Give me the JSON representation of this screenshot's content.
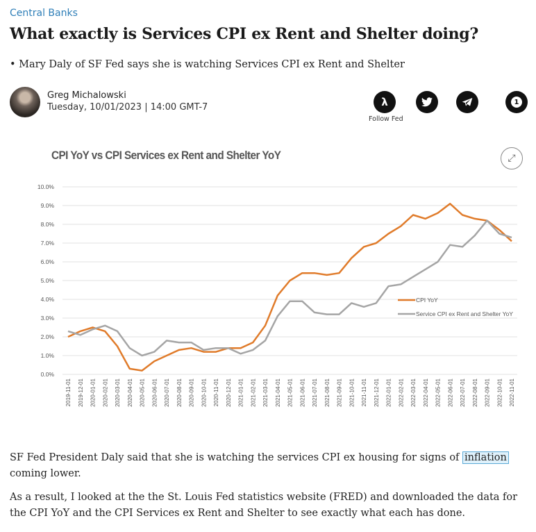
{
  "kicker": "Central Banks",
  "title": "What exactly is Services CPI ex Rent and Shelter doing?",
  "subtitle": "• Mary Daly of SF Fed says she is watching Services CPI ex Rent and Shelter",
  "author": {
    "name": "Greg Michalowski",
    "date": "Tuesday, 10/01/2023 | 14:00 GMT-7"
  },
  "social": {
    "follow_label": "Follow Fed",
    "comment_count": "1",
    "icons": [
      "lambda-icon",
      "twitter-icon",
      "telegram-icon",
      "comment-icon"
    ]
  },
  "chart_data": {
    "type": "line",
    "title": "CPI YoY vs CPI Services ex Rent and Shelter YoY",
    "ylim": [
      0,
      10
    ],
    "y_ticks": [
      "0.0%",
      "1.0%",
      "2.0%",
      "3.0%",
      "4.0%",
      "5.0%",
      "6.0%",
      "7.0%",
      "8.0%",
      "9.0%",
      "10.0%"
    ],
    "grid": true,
    "legend_placement": "right",
    "categories": [
      "2019-11-01",
      "2019-12-01",
      "2020-01-01",
      "2020-02-01",
      "2020-03-01",
      "2020-04-01",
      "2020-05-01",
      "2020-06-01",
      "2020-07-01",
      "2020-08-01",
      "2020-09-01",
      "2020-10-01",
      "2020-11-01",
      "2020-12-01",
      "2021-01-01",
      "2021-02-01",
      "2021-03-01",
      "2021-04-01",
      "2021-05-01",
      "2021-06-01",
      "2021-07-01",
      "2021-08-01",
      "2021-09-01",
      "2021-10-01",
      "2021-11-01",
      "2021-12-01",
      "2022-01-01",
      "2022-02-01",
      "2022-03-01",
      "2022-04-01",
      "2022-05-01",
      "2022-06-01",
      "2022-07-01",
      "2022-08-01",
      "2022-09-01",
      "2022-10-01",
      "2022-11-01"
    ],
    "series": [
      {
        "name": "CPI YoY",
        "color": "#e07b2a",
        "values": [
          2.0,
          2.3,
          2.5,
          2.3,
          1.5,
          0.3,
          0.2,
          0.7,
          1.0,
          1.3,
          1.4,
          1.2,
          1.2,
          1.4,
          1.4,
          1.7,
          2.6,
          4.2,
          5.0,
          5.4,
          5.4,
          5.3,
          5.4,
          6.2,
          6.8,
          7.0,
          7.5,
          7.9,
          8.5,
          8.3,
          8.6,
          9.1,
          8.5,
          8.3,
          8.2,
          7.7,
          7.1
        ]
      },
      {
        "name": "Service CPI ex Rent and Shelter YoY",
        "color": "#a5a5a5",
        "values": [
          2.3,
          2.1,
          2.4,
          2.6,
          2.3,
          1.4,
          1.0,
          1.2,
          1.8,
          1.7,
          1.7,
          1.3,
          1.4,
          1.4,
          1.1,
          1.3,
          1.8,
          3.1,
          3.9,
          3.9,
          3.3,
          3.2,
          3.2,
          3.8,
          3.6,
          3.8,
          4.7,
          4.8,
          5.2,
          5.6,
          6.0,
          6.9,
          6.8,
          7.4,
          8.2,
          7.5,
          7.3
        ]
      }
    ]
  },
  "body": {
    "p1_before": "SF Fed President Daly said that she is watching the services CPI ex housing for signs of ",
    "p1_link": "inflation",
    "p1_after": " coming lower.",
    "p2": "As a result, I looked at the the St. Louis Fed statistics website (FRED) and downloaded the data for the CPI YoY and the CPI Services ex Rent and Shelter to see exactly what each has done."
  }
}
